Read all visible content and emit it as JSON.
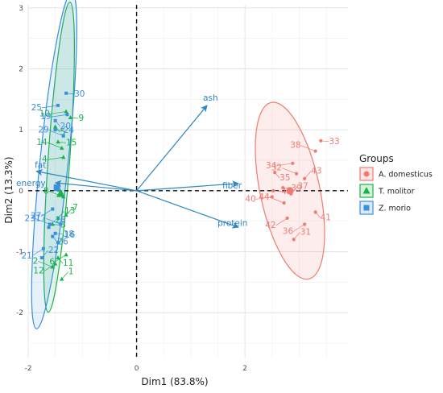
{
  "chart_data": {
    "type": "scatter",
    "title": "",
    "xlabel": "Dim1 (83.8%)",
    "ylabel": "Dim2 (13.3%)",
    "xlim": [
      -2.0,
      3.9
    ],
    "ylim": [
      -2.75,
      3.05
    ],
    "x_ticks": [
      -2,
      0,
      2
    ],
    "x_tick_labels": [
      "-2",
      "0",
      "2"
    ],
    "y_ticks": [
      -2,
      -1,
      0,
      1,
      2,
      3
    ],
    "y_tick_labels": [
      "-2",
      "-1",
      "0",
      "1",
      "2",
      "3"
    ],
    "grid": true,
    "reference_lines": {
      "x": 0,
      "y": 0,
      "style": "dashed"
    },
    "legend": {
      "title": "Groups",
      "position": "right",
      "entries": [
        "A. domesticus",
        "T. molitor",
        "Z. morio"
      ]
    },
    "series": [
      {
        "name": "A. domesticus",
        "color": "#f07a73",
        "marker": "circle",
        "centroid": {
          "x": 2.83,
          "y": 0.0
        },
        "ellipse": {
          "cx": 2.83,
          "cy": 0.0,
          "rx": 0.55,
          "ry": 1.48,
          "angle": -12
        },
        "points": [
          {
            "label": "31",
            "x": 2.9,
            "y": -0.8
          },
          {
            "label": "32",
            "x": 2.95,
            "y": 0.28
          },
          {
            "label": "33",
            "x": 3.4,
            "y": 0.82
          },
          {
            "label": "34",
            "x": 2.88,
            "y": 0.45
          },
          {
            "label": "35",
            "x": 2.55,
            "y": 0.3
          },
          {
            "label": "36",
            "x": 3.1,
            "y": -0.55
          },
          {
            "label": "37",
            "x": 2.85,
            "y": -0.05
          },
          {
            "label": "38",
            "x": 3.3,
            "y": 0.65
          },
          {
            "label": "39",
            "x": 2.7,
            "y": 0.05
          },
          {
            "label": "40",
            "x": 2.5,
            "y": -0.1
          },
          {
            "label": "41",
            "x": 3.3,
            "y": -0.35
          },
          {
            "label": "42",
            "x": 2.78,
            "y": -0.45
          },
          {
            "label": "43",
            "x": 3.1,
            "y": 0.2
          },
          {
            "label": "44",
            "x": 2.72,
            "y": -0.2
          },
          {
            "label": "45",
            "x": 2.52,
            "y": 0.0
          }
        ]
      },
      {
        "name": "T. molitor",
        "color": "#1ab24a",
        "marker": "triangle",
        "centroid": {
          "x": -1.4,
          "y": -0.05
        },
        "ellipse": {
          "cx": -1.43,
          "cy": 0.55,
          "rx": 0.2,
          "ry": 2.55,
          "angle": 4
        },
        "points": [
          {
            "label": "1",
            "x": -1.38,
            "y": -1.45
          },
          {
            "label": "2",
            "x": -1.55,
            "y": -1.25
          },
          {
            "label": "3",
            "x": -1.55,
            "y": -0.55
          },
          {
            "label": "4",
            "x": -1.35,
            "y": 0.55
          },
          {
            "label": "5",
            "x": -1.5,
            "y": 1.05
          },
          {
            "label": "6",
            "x": -1.3,
            "y": -1.05
          },
          {
            "label": "7",
            "x": -1.3,
            "y": -0.4
          },
          {
            "label": "8",
            "x": -1.35,
            "y": -0.1
          },
          {
            "label": "9",
            "x": -1.22,
            "y": 1.2
          },
          {
            "label": "10",
            "x": -1.3,
            "y": 1.3
          },
          {
            "label": "11",
            "x": -1.45,
            "y": -1.1
          },
          {
            "label": "12",
            "x": -1.5,
            "y": -1.2
          },
          {
            "label": "13",
            "x": -1.45,
            "y": -0.45
          },
          {
            "label": "14",
            "x": -1.38,
            "y": 0.7
          },
          {
            "label": "15",
            "x": -1.45,
            "y": 0.8
          }
        ]
      },
      {
        "name": "Z. morio",
        "color": "#3a8fde",
        "marker": "square",
        "centroid": {
          "x": -1.47,
          "y": 0.05
        },
        "ellipse": {
          "cx": -1.52,
          "cy": 0.5,
          "rx": 0.26,
          "ry": 2.78,
          "angle": 6
        },
        "points": [
          {
            "label": "16",
            "x": -1.45,
            "y": -0.85
          },
          {
            "label": "17",
            "x": -1.4,
            "y": -0.55
          },
          {
            "label": "18",
            "x": -1.5,
            "y": -0.7
          },
          {
            "label": "19",
            "x": -1.28,
            "y": 1.25
          },
          {
            "label": "20",
            "x": -1.5,
            "y": 1.15
          },
          {
            "label": "21",
            "x": -1.72,
            "y": -0.95
          },
          {
            "label": "22",
            "x": -1.75,
            "y": -1.1
          },
          {
            "label": "23",
            "x": -1.6,
            "y": -0.55
          },
          {
            "label": "24",
            "x": -1.5,
            "y": 1.0
          },
          {
            "label": "25",
            "x": -1.45,
            "y": 1.4
          },
          {
            "label": "26",
            "x": -1.55,
            "y": -0.75
          },
          {
            "label": "27",
            "x": -1.55,
            "y": -0.3
          },
          {
            "label": "28",
            "x": -1.62,
            "y": -0.6
          },
          {
            "label": "29",
            "x": -1.35,
            "y": 0.9
          },
          {
            "label": "30",
            "x": -1.3,
            "y": 1.6
          }
        ]
      }
    ],
    "variables": [
      {
        "label": "ash",
        "x": 1.3,
        "y": 1.4
      },
      {
        "label": "fiber",
        "x": 1.88,
        "y": 0.12
      },
      {
        "label": "protein",
        "x": 1.88,
        "y": -0.6
      },
      {
        "label": "fat",
        "x": -1.85,
        "y": 0.32
      },
      {
        "label": "energy",
        "x": -1.5,
        "y": 0.13
      }
    ]
  }
}
